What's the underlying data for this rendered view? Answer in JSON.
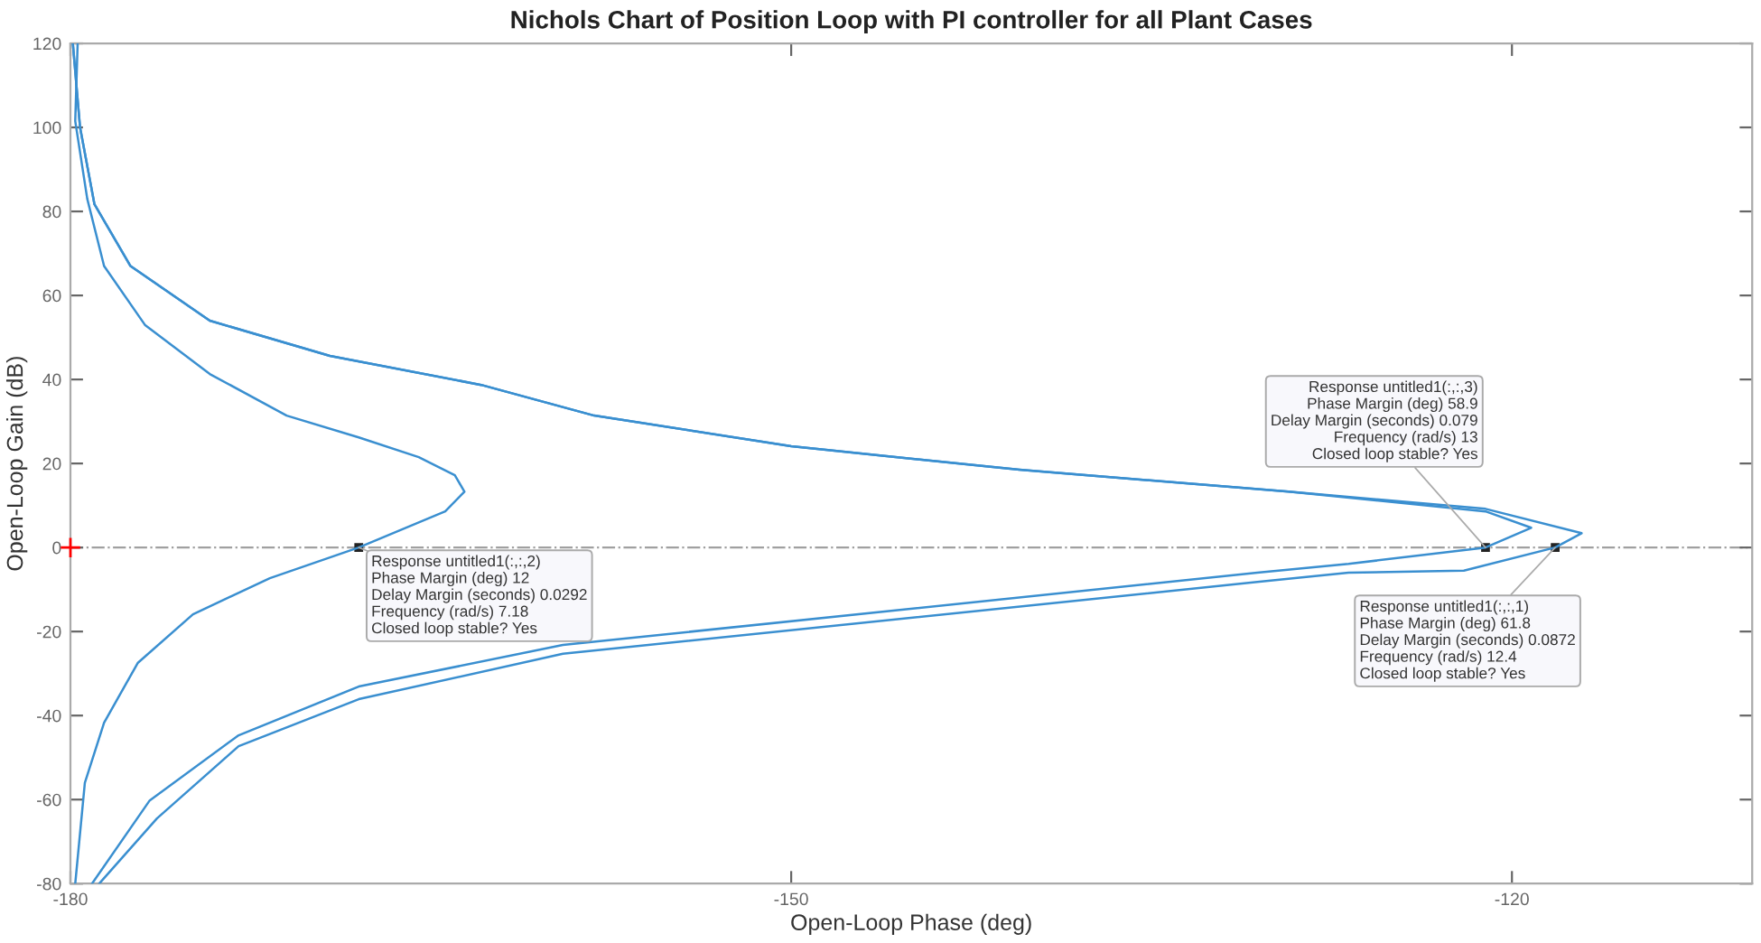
{
  "chart_data": {
    "type": "line",
    "title": "Nichols Chart of Position Loop with PI controller for all Plant Cases",
    "xlabel": "Open-Loop Phase (deg)",
    "ylabel": "Open-Loop Gain (dB)",
    "xlim": [
      -180,
      -110
    ],
    "xticks": [
      -180,
      -150,
      -120
    ],
    "ylim": [
      -80,
      120
    ],
    "yticks": [
      -80,
      -60,
      -40,
      -20,
      0,
      20,
      40,
      60,
      80,
      100,
      120
    ],
    "grid": false,
    "legend": false,
    "series": [
      {
        "type": "line",
        "color": "#3a8fd0",
        "x": [
          -179.9,
          -179.6,
          -179.0,
          -177.5,
          -174.2,
          -169.2,
          -162.9,
          -158.2,
          -150.0,
          -140.5,
          -129.3,
          -121.1,
          -117.1,
          -118.2,
          -122.0,
          -126.8,
          -130.6,
          -159.5,
          -168.0,
          -173.0,
          -176.4,
          -178.8
        ],
        "values": [
          120,
          100,
          81.7,
          67,
          54,
          45.6,
          38.7,
          31.4,
          24.1,
          18.5,
          13.3,
          9.2,
          3.4,
          0,
          -5.5,
          -6,
          -8.2,
          -25.3,
          -36.1,
          -47.3,
          -64.5,
          -80
        ]
      },
      {
        "type": "line",
        "color": "#3a8fd0",
        "x": [
          -179.7,
          -179.8,
          -179.3,
          -178.6,
          -176.9,
          -174.2,
          -171.0,
          -168.0,
          -165.5,
          -164.0,
          -163.6,
          -164.4,
          -168.0,
          -171.7,
          -174.9,
          -177.2,
          -178.6,
          -179.4,
          -179.8
        ],
        "values": [
          120,
          101.5,
          83,
          67,
          53,
          41.3,
          31.4,
          26.2,
          21.5,
          17.2,
          13.3,
          8.6,
          0,
          -7.3,
          -15.9,
          -27.5,
          -41.7,
          -56,
          -80
        ]
      },
      {
        "type": "line",
        "color": "#3a8fd0",
        "x": [
          -179.9,
          -179.6,
          -179.0,
          -177.5,
          -174.2,
          -169.2,
          -162.9,
          -158.2,
          -150.0,
          -140.5,
          -129.3,
          -121.1,
          -119.2,
          -121.1,
          -126.8,
          -130.6,
          -159.5,
          -168.0,
          -173.0,
          -176.7,
          -179.1
        ],
        "values": [
          120,
          100,
          81.7,
          67,
          54,
          45.6,
          38.7,
          31.4,
          24.1,
          18.5,
          13.3,
          8.6,
          4.7,
          0,
          -3.9,
          -6,
          -23.2,
          -33.1,
          -44.7,
          -60.2,
          -80
        ]
      },
      {
        "type": "scatter",
        "marker": "cross",
        "color": "#ff0000",
        "x": [
          -180
        ],
        "values": [
          0
        ]
      }
    ],
    "ref_lines": [
      {
        "axis": "y",
        "value": 0,
        "color": "#a0a0a0",
        "line_style": "dashdot"
      }
    ],
    "annotations": [
      {
        "text": "Response untitled1(:,:,2)\nPhase Margin (deg) 12\nDelay Margin (seconds) 0.0292\nFrequency (rad/s) 7.18\nClosed loop stable? Yes",
        "x": -168,
        "y": 0
      },
      {
        "text": "Response untitled1(:,:,3)\nPhase Margin (deg) 58.9\nDelay Margin (seconds) 0.079\nFrequency (rad/s) 13\nClosed loop stable? Yes",
        "x": -121.1,
        "y": 0
      },
      {
        "text": "Response untitled1(:,:,1)\nPhase Margin (deg) 61.8\nDelay Margin (seconds) 0.0872\nFrequency (rad/s) 12.4\nClosed loop stable? Yes",
        "x": -118.2,
        "y": 0
      }
    ]
  }
}
